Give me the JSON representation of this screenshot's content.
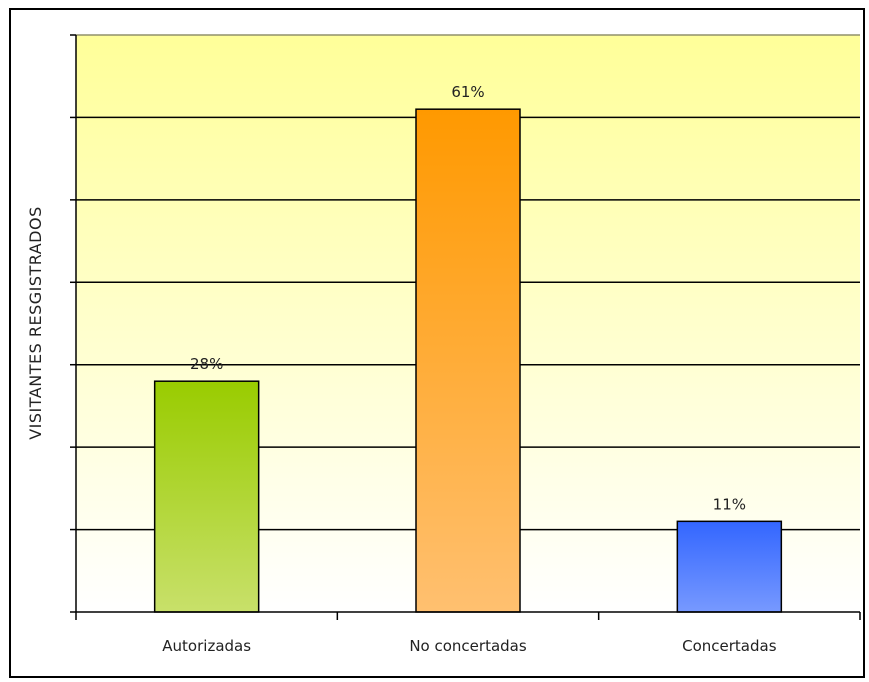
{
  "chart_data": {
    "type": "bar",
    "title": "",
    "xlabel": "",
    "ylabel": "VISITANTES RESGISTRADOS",
    "categories": [
      "Autorizadas",
      "No concertadas",
      "Concertadas"
    ],
    "values": [
      28,
      61,
      11
    ],
    "data_labels": [
      "28%",
      "61%",
      "11%"
    ],
    "ylim": [
      0,
      70
    ],
    "grid": true,
    "legend": "none",
    "colors": {
      "bar_tops": [
        "#99cc00",
        "#ff9900",
        "#3366ff"
      ],
      "bar_bottoms": [
        "#c8e06a",
        "#ffc070",
        "#7799ff"
      ],
      "plot_top": "#ffff99",
      "plot_bottom": "#ffffff"
    }
  }
}
